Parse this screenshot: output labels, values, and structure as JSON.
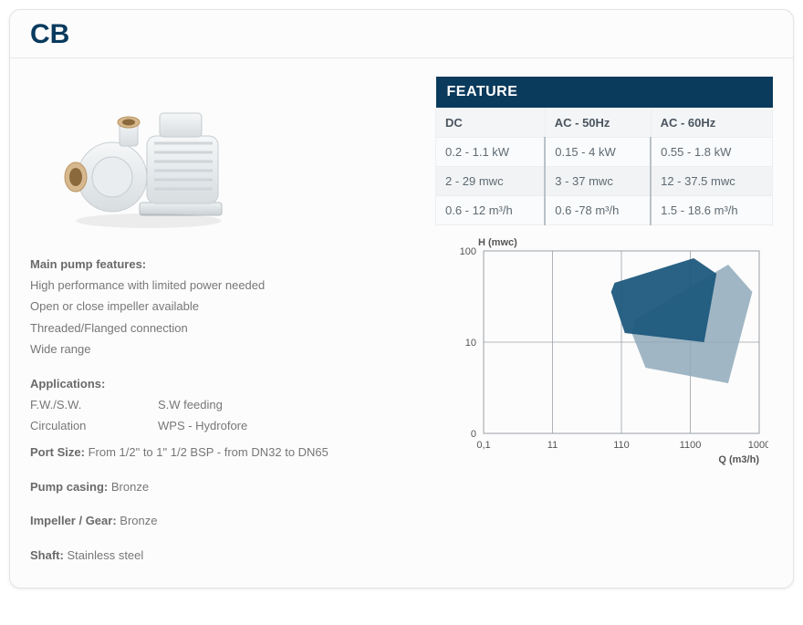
{
  "title": "CB",
  "features": {
    "label": "Main pump features:",
    "items": [
      "High performance with limited power needed",
      "Open or close impeller available",
      "Threaded/Flanged connection",
      "Wide range"
    ]
  },
  "applications": {
    "label": "Applications:",
    "rows": [
      [
        "F.W./S.W.",
        "S.W feeding"
      ],
      [
        "Circulation",
        "WPS - Hydrofore"
      ]
    ]
  },
  "port_size": {
    "label": "Port Size:",
    "value": " From 1/2\" to 1\" 1/2 BSP - from DN32 to DN65"
  },
  "pump_casing": {
    "label": "Pump casing:",
    "value": " Bronze"
  },
  "impeller": {
    "label": "Impeller / Gear:",
    "value": " Bronze"
  },
  "shaft": {
    "label": "Shaft:",
    "value": " Stainless steel"
  },
  "feature_table": {
    "heading": "FEATURE",
    "columns": [
      "DC",
      "AC - 50Hz",
      "AC - 60Hz"
    ],
    "rows": [
      [
        "0.2 - 1.1 kW",
        "0.15 - 4 kW",
        "0.55 - 1.8 kW"
      ],
      [
        "2 - 29 mwc",
        "3 - 37 mwc",
        "12 - 37.5 mwc"
      ],
      [
        "0.6 - 12 m³/h",
        "0.6 -78 m³/h",
        "1.5 - 18.6 m³/h"
      ]
    ],
    "heading_bg": "#0a3a5c",
    "heading_color": "#ffffff"
  },
  "chart": {
    "type": "log-log-area",
    "y_label": "H (mwc)",
    "x_label": "Q (m3/h)",
    "x_ticks": [
      "0,1",
      "11",
      "110",
      "1100",
      "1000"
    ],
    "y_ticks": [
      "0",
      "10",
      "100"
    ],
    "xlim_log": [
      -1,
      3
    ],
    "ylim_log": [
      0,
      2
    ],
    "grid_color": "#9aa0a6",
    "background_color": "#ffffff",
    "regions": [
      {
        "name": "region-front-dark",
        "color": "#1e5a7d",
        "opacity": 0.95,
        "points_log": [
          [
            0.9,
            1.65
          ],
          [
            2.05,
            1.92
          ],
          [
            2.38,
            1.75
          ],
          [
            2.2,
            1.0
          ],
          [
            1.05,
            1.1
          ],
          [
            0.85,
            1.55
          ]
        ]
      },
      {
        "name": "region-back-light",
        "color": "#8fa9ba",
        "opacity": 0.85,
        "points_log": [
          [
            1.2,
            1.25
          ],
          [
            2.55,
            1.85
          ],
          [
            2.9,
            1.55
          ],
          [
            2.55,
            0.55
          ],
          [
            1.35,
            0.72
          ],
          [
            1.15,
            1.1
          ]
        ]
      }
    ]
  },
  "colors": {
    "title": "#083a5e",
    "text": "#6a6a6a",
    "muted": "#777777",
    "table_border": "#eceef0",
    "table_col_sep": "#b9c2c9"
  }
}
